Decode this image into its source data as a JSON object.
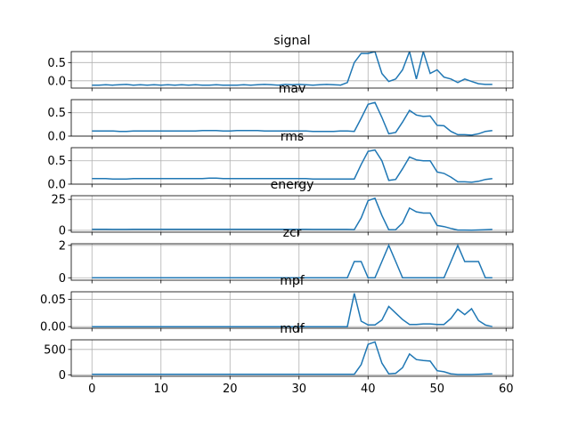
{
  "chart_data": [
    {
      "type": "line",
      "title": "signal",
      "ylim": [
        -0.2,
        0.8
      ],
      "yticks": [
        0.0,
        0.5
      ],
      "ytick_labels": [
        "0.0",
        "0.5"
      ],
      "x": [
        0,
        1,
        2,
        3,
        4,
        5,
        6,
        7,
        8,
        9,
        10,
        11,
        12,
        13,
        14,
        15,
        16,
        17,
        18,
        19,
        20,
        21,
        22,
        23,
        24,
        25,
        26,
        27,
        28,
        29,
        30,
        31,
        32,
        33,
        34,
        35,
        36,
        37,
        38,
        39,
        40,
        41,
        42,
        43,
        44,
        45,
        46,
        47,
        48,
        49,
        50,
        51,
        52,
        53,
        54,
        55,
        56,
        57,
        58
      ],
      "values": [
        -0.12,
        -0.12,
        -0.11,
        -0.12,
        -0.11,
        -0.1,
        -0.12,
        -0.11,
        -0.12,
        -0.11,
        -0.12,
        -0.11,
        -0.12,
        -0.11,
        -0.12,
        -0.11,
        -0.12,
        -0.12,
        -0.11,
        -0.12,
        -0.12,
        -0.12,
        -0.11,
        -0.12,
        -0.11,
        -0.1,
        -0.11,
        -0.12,
        -0.1,
        -0.11,
        -0.1,
        -0.11,
        -0.12,
        -0.11,
        -0.1,
        -0.11,
        -0.12,
        -0.05,
        0.5,
        0.75,
        0.75,
        0.8,
        0.2,
        -0.02,
        0.05,
        0.3,
        0.8,
        0.05,
        0.8,
        0.2,
        0.3,
        0.1,
        0.05,
        -0.05,
        0.05,
        -0.02,
        -0.08,
        -0.1,
        -0.1
      ],
      "grid": true
    },
    {
      "type": "line",
      "title": "mav",
      "ylim": [
        0,
        0.78
      ],
      "yticks": [
        0.0,
        0.5
      ],
      "ytick_labels": [
        "0.0",
        "0.5"
      ],
      "x": [
        0,
        1,
        2,
        3,
        4,
        5,
        6,
        7,
        8,
        9,
        10,
        11,
        12,
        13,
        14,
        15,
        16,
        17,
        18,
        19,
        20,
        21,
        22,
        23,
        24,
        25,
        26,
        27,
        28,
        29,
        30,
        31,
        32,
        33,
        34,
        35,
        36,
        37,
        38,
        39,
        40,
        41,
        42,
        43,
        44,
        45,
        46,
        47,
        48,
        49,
        50,
        51,
        52,
        53,
        54,
        55,
        56,
        57,
        58
      ],
      "values": [
        0.11,
        0.11,
        0.11,
        0.11,
        0.1,
        0.1,
        0.11,
        0.11,
        0.11,
        0.11,
        0.11,
        0.11,
        0.11,
        0.11,
        0.11,
        0.11,
        0.12,
        0.12,
        0.12,
        0.11,
        0.11,
        0.12,
        0.12,
        0.12,
        0.12,
        0.11,
        0.11,
        0.11,
        0.11,
        0.11,
        0.11,
        0.11,
        0.1,
        0.1,
        0.1,
        0.1,
        0.11,
        0.11,
        0.1,
        0.38,
        0.68,
        0.72,
        0.4,
        0.05,
        0.08,
        0.3,
        0.55,
        0.45,
        0.42,
        0.43,
        0.23,
        0.22,
        0.1,
        0.03,
        0.03,
        0.02,
        0.05,
        0.1,
        0.12
      ],
      "grid": true
    },
    {
      "type": "line",
      "title": "rms",
      "ylim": [
        0,
        0.78
      ],
      "yticks": [
        0.0,
        0.5
      ],
      "ytick_labels": [
        "0.0",
        "0.5"
      ],
      "x": [
        0,
        1,
        2,
        3,
        4,
        5,
        6,
        7,
        8,
        9,
        10,
        11,
        12,
        13,
        14,
        15,
        16,
        17,
        18,
        19,
        20,
        21,
        22,
        23,
        24,
        25,
        26,
        27,
        28,
        29,
        30,
        31,
        32,
        33,
        34,
        35,
        36,
        37,
        38,
        39,
        40,
        41,
        42,
        43,
        44,
        45,
        46,
        47,
        48,
        49,
        50,
        51,
        52,
        53,
        54,
        55,
        56,
        57,
        58
      ],
      "values": [
        0.12,
        0.12,
        0.12,
        0.11,
        0.11,
        0.11,
        0.12,
        0.12,
        0.12,
        0.12,
        0.12,
        0.12,
        0.12,
        0.12,
        0.12,
        0.12,
        0.12,
        0.13,
        0.13,
        0.12,
        0.12,
        0.12,
        0.12,
        0.12,
        0.12,
        0.12,
        0.12,
        0.12,
        0.12,
        0.12,
        0.12,
        0.12,
        0.11,
        0.11,
        0.11,
        0.11,
        0.11,
        0.11,
        0.11,
        0.42,
        0.7,
        0.73,
        0.5,
        0.08,
        0.1,
        0.33,
        0.58,
        0.52,
        0.5,
        0.5,
        0.26,
        0.23,
        0.15,
        0.05,
        0.05,
        0.04,
        0.06,
        0.1,
        0.12
      ],
      "grid": true
    },
    {
      "type": "line",
      "title": "energy",
      "ylim": [
        -1.5,
        28
      ],
      "yticks": [
        0,
        25
      ],
      "ytick_labels": [
        "0",
        "25"
      ],
      "x": [
        0,
        1,
        2,
        3,
        4,
        5,
        6,
        7,
        8,
        9,
        10,
        11,
        12,
        13,
        14,
        15,
        16,
        17,
        18,
        19,
        20,
        21,
        22,
        23,
        24,
        25,
        26,
        27,
        28,
        29,
        30,
        31,
        32,
        33,
        34,
        35,
        36,
        37,
        38,
        39,
        40,
        41,
        42,
        43,
        44,
        45,
        46,
        47,
        48,
        49,
        50,
        51,
        52,
        53,
        54,
        55,
        56,
        57,
        58
      ],
      "values": [
        0.8,
        0.8,
        0.8,
        0.7,
        0.7,
        0.7,
        0.8,
        0.8,
        0.8,
        0.8,
        0.8,
        0.8,
        0.8,
        0.8,
        0.8,
        0.8,
        0.8,
        0.9,
        0.9,
        0.8,
        0.8,
        0.8,
        0.8,
        0.8,
        0.8,
        0.8,
        0.8,
        0.8,
        0.8,
        0.8,
        0.8,
        0.8,
        0.7,
        0.7,
        0.7,
        0.7,
        0.7,
        0.7,
        0.6,
        10,
        24,
        26,
        12,
        0.5,
        0.6,
        6,
        18,
        15,
        14,
        14,
        4,
        3,
        1.5,
        0.2,
        0.2,
        0.1,
        0.3,
        0.5,
        0.7
      ],
      "grid": true
    },
    {
      "type": "line",
      "title": "zcr",
      "ylim": [
        -0.15,
        2.1
      ],
      "yticks": [
        0,
        2
      ],
      "ytick_labels": [
        "0",
        "2"
      ],
      "x": [
        0,
        1,
        2,
        3,
        4,
        5,
        6,
        7,
        8,
        9,
        10,
        11,
        12,
        13,
        14,
        15,
        16,
        17,
        18,
        19,
        20,
        21,
        22,
        23,
        24,
        25,
        26,
        27,
        28,
        29,
        30,
        31,
        32,
        33,
        34,
        35,
        36,
        37,
        38,
        39,
        40,
        41,
        42,
        43,
        44,
        45,
        46,
        47,
        48,
        49,
        50,
        51,
        52,
        53,
        54,
        55,
        56,
        57,
        58
      ],
      "values": [
        0,
        0,
        0,
        0,
        0,
        0,
        0,
        0,
        0,
        0,
        0,
        0,
        0,
        0,
        0,
        0,
        0,
        0,
        0,
        0,
        0,
        0,
        0,
        0,
        0,
        0,
        0,
        0,
        0,
        0,
        0,
        0,
        0,
        0,
        0,
        0,
        0,
        0,
        1,
        1,
        0,
        0,
        1,
        2,
        1,
        0,
        0,
        0,
        0,
        0,
        0,
        0,
        1,
        2,
        1,
        1,
        1,
        0,
        0
      ],
      "grid": true
    },
    {
      "type": "line",
      "title": "mpf",
      "ylim": [
        -0.003,
        0.064
      ],
      "yticks": [
        0.0,
        0.05
      ],
      "ytick_labels": [
        "0.00",
        "0.05"
      ],
      "x": [
        0,
        1,
        2,
        3,
        4,
        5,
        6,
        7,
        8,
        9,
        10,
        11,
        12,
        13,
        14,
        15,
        16,
        17,
        18,
        19,
        20,
        21,
        22,
        23,
        24,
        25,
        26,
        27,
        28,
        29,
        30,
        31,
        32,
        33,
        34,
        35,
        36,
        37,
        38,
        39,
        40,
        41,
        42,
        43,
        44,
        45,
        46,
        47,
        48,
        49,
        50,
        51,
        52,
        53,
        54,
        55,
        56,
        57,
        58
      ],
      "values": [
        0,
        0,
        0,
        0,
        0,
        0,
        0,
        0,
        0,
        0,
        0,
        0,
        0,
        0,
        0,
        0,
        0,
        0,
        0,
        0,
        0,
        0,
        0,
        0,
        0,
        0,
        0,
        0,
        0,
        0,
        0,
        0,
        0,
        0,
        0,
        0,
        0,
        0,
        0.061,
        0.01,
        0.003,
        0.003,
        0.012,
        0.037,
        0.025,
        0.013,
        0.004,
        0.004,
        0.005,
        0.005,
        0.004,
        0.004,
        0.015,
        0.032,
        0.022,
        0.033,
        0.011,
        0.003,
        0
      ],
      "grid": true
    },
    {
      "type": "line",
      "title": "mdf",
      "xlim": [
        -3,
        61
      ],
      "xticks": [
        0,
        10,
        20,
        30,
        40,
        50,
        60
      ],
      "xtick_labels": [
        "0",
        "10",
        "20",
        "30",
        "40",
        "50",
        "60"
      ],
      "ylim": [
        -30,
        690
      ],
      "yticks": [
        0,
        500
      ],
      "ytick_labels": [
        "0",
        "500"
      ],
      "x": [
        0,
        1,
        2,
        3,
        4,
        5,
        6,
        7,
        8,
        9,
        10,
        11,
        12,
        13,
        14,
        15,
        16,
        17,
        18,
        19,
        20,
        21,
        22,
        23,
        24,
        25,
        26,
        27,
        28,
        29,
        30,
        31,
        32,
        33,
        34,
        35,
        36,
        37,
        38,
        39,
        40,
        41,
        42,
        43,
        44,
        45,
        46,
        47,
        48,
        49,
        50,
        51,
        52,
        53,
        54,
        55,
        56,
        57,
        58
      ],
      "values": [
        10,
        10,
        10,
        10,
        10,
        10,
        10,
        10,
        10,
        10,
        10,
        10,
        10,
        10,
        10,
        10,
        10,
        10,
        10,
        10,
        10,
        10,
        10,
        10,
        10,
        10,
        10,
        10,
        10,
        10,
        10,
        10,
        10,
        10,
        10,
        10,
        10,
        10,
        10,
        200,
        600,
        650,
        230,
        20,
        30,
        140,
        410,
        300,
        280,
        270,
        80,
        60,
        20,
        5,
        5,
        5,
        10,
        15,
        20
      ],
      "grid": true
    }
  ],
  "style": {
    "line_color": "#1f77b4",
    "grid_color": "#b0b0b0",
    "axis_color": "#000000"
  }
}
